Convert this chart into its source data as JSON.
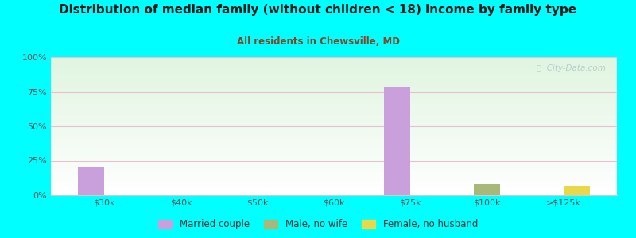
{
  "title": "Distribution of median family (without children < 18) income by family type",
  "subtitle": "All residents in Chewsville, MD",
  "background_color": "#00FFFF",
  "categories": [
    "$30k",
    "$40k",
    "$50k",
    "$60k",
    "$75k",
    "$100k",
    ">$125k"
  ],
  "married_couple": [
    20,
    0,
    0,
    0,
    78,
    0,
    0
  ],
  "male_no_wife": [
    0,
    0,
    0,
    0,
    0,
    8,
    0
  ],
  "female_no_husband": [
    0,
    0,
    0,
    0,
    0,
    0,
    7
  ],
  "married_color": "#c9a0dc",
  "male_color": "#a8b878",
  "female_color": "#e8d84a",
  "bar_width": 0.35,
  "ylim": [
    0,
    100
  ],
  "yticks": [
    0,
    25,
    50,
    75,
    100
  ],
  "ytick_labels": [
    "0%",
    "25%",
    "50%",
    "75%",
    "100%"
  ],
  "legend_labels": [
    "Married couple",
    "Male, no wife",
    "Female, no husband"
  ],
  "watermark": "ⓘ  City-Data.com",
  "grid_color": "#e8c0d0",
  "title_color": "#1a1a1a",
  "subtitle_color": "#884422",
  "tick_color": "#555555"
}
